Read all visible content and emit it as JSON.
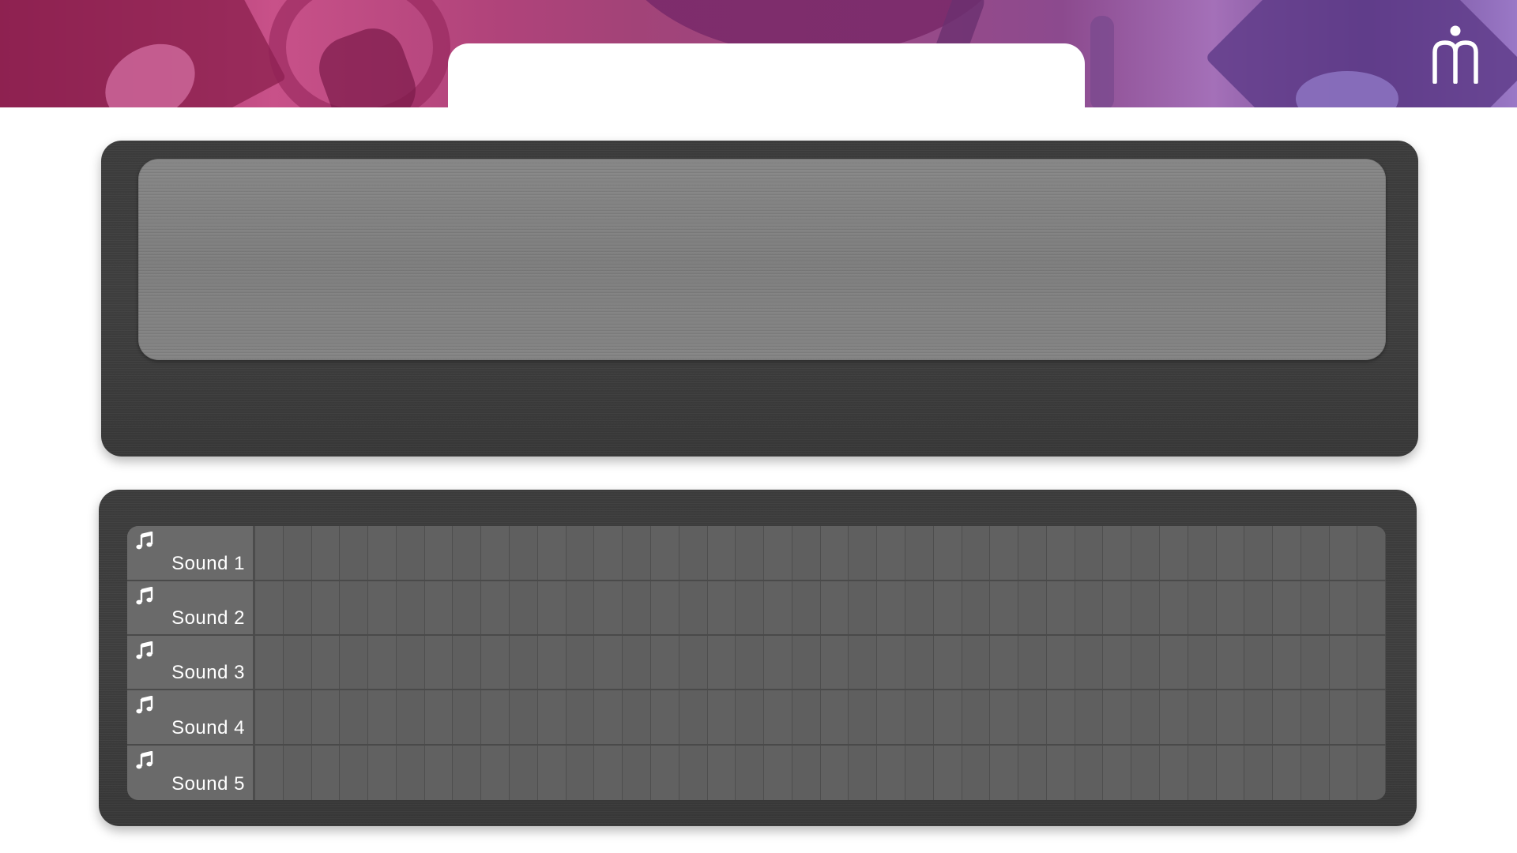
{
  "app": {
    "brand_logo_icon": "m-person-logo-icon",
    "accent_color": "#b0437a"
  },
  "sequencer": {
    "steps_per_row": 40,
    "tracks": [
      {
        "label": "Sound 1",
        "icon": "music-note-icon"
      },
      {
        "label": "Sound 2",
        "icon": "music-note-icon"
      },
      {
        "label": "Sound 3",
        "icon": "music-note-icon"
      },
      {
        "label": "Sound 4",
        "icon": "music-note-icon"
      },
      {
        "label": "Sound 5",
        "icon": "music-note-icon"
      }
    ]
  }
}
